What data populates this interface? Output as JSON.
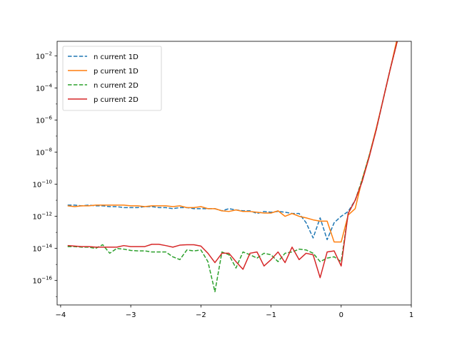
{
  "chart_data": {
    "type": "line",
    "y_scale": "log",
    "xlim": [
      -4.05,
      1.0
    ],
    "ylim": [
      3e-18,
      0.08
    ],
    "grid": false,
    "legend_position": "top-left",
    "x_ticks": [
      -4,
      -3,
      -2,
      -1,
      0,
      1
    ],
    "x_tick_labels": [
      "−4",
      "−3",
      "−2",
      "−1",
      "0",
      "1"
    ],
    "y_ticks": [
      1e-16,
      1e-14,
      1e-12,
      1e-10,
      1e-08,
      1e-06,
      0.0001,
      0.01
    ],
    "y_tick_labels": [
      {
        "base": "10",
        "exp": "−16"
      },
      {
        "base": "10",
        "exp": "−14"
      },
      {
        "base": "10",
        "exp": "−12"
      },
      {
        "base": "10",
        "exp": "−10"
      },
      {
        "base": "10",
        "exp": "−8"
      },
      {
        "base": "10",
        "exp": "−6"
      },
      {
        "base": "10",
        "exp": "−4"
      },
      {
        "base": "10",
        "exp": "−2"
      }
    ],
    "x": [
      -3.9,
      -3.8,
      -3.7,
      -3.6,
      -3.5,
      -3.4,
      -3.3,
      -3.2,
      -3.1,
      -3.0,
      -2.9,
      -2.8,
      -2.7,
      -2.6,
      -2.5,
      -2.4,
      -2.3,
      -2.2,
      -2.1,
      -2.0,
      -1.9,
      -1.8,
      -1.7,
      -1.6,
      -1.5,
      -1.4,
      -1.3,
      -1.2,
      -1.1,
      -1.0,
      -0.9,
      -0.8,
      -0.7,
      -0.6,
      -0.5,
      -0.4,
      -0.3,
      -0.2,
      -0.1,
      0.0,
      0.1,
      0.2,
      0.3,
      0.4,
      0.5,
      0.6,
      0.7,
      0.8
    ],
    "series": [
      {
        "name": "n current 1D",
        "color": "#1f77b4",
        "dash": "dashed",
        "values": [
          5e-12,
          5e-12,
          4.5e-12,
          5e-12,
          4.5e-12,
          4.5e-12,
          4e-12,
          4e-12,
          3.5e-12,
          3.5e-12,
          3.5e-12,
          4e-12,
          4e-12,
          3.5e-12,
          3.5e-12,
          3e-12,
          3.5e-12,
          3.5e-12,
          3e-12,
          3e-12,
          3e-12,
          3e-12,
          2.2e-12,
          3e-12,
          2.5e-12,
          2.2e-12,
          2.2e-12,
          1.5e-12,
          2e-12,
          1.8e-12,
          2e-12,
          1.8e-12,
          1.5e-12,
          1.5e-12,
          4e-13,
          4.5e-14,
          8e-13,
          3.5e-14,
          4e-13,
          1e-12,
          2e-12,
          1e-11,
          1.5e-10,
          6e-09,
          2.5e-07,
          2e-05,
          0.0015,
          0.1
        ]
      },
      {
        "name": "p current 1D",
        "color": "#ff7f0e",
        "dash": "solid",
        "values": [
          4.5e-12,
          4e-12,
          4.5e-12,
          4.5e-12,
          5e-12,
          5e-12,
          5e-12,
          5e-12,
          5e-12,
          4.5e-12,
          4.5e-12,
          4e-12,
          4.5e-12,
          4.5e-12,
          4.5e-12,
          4e-12,
          4.5e-12,
          3.5e-12,
          3.5e-12,
          4e-12,
          3e-12,
          3e-12,
          2.2e-12,
          2e-12,
          2.5e-12,
          2e-12,
          2e-12,
          1.8e-12,
          1.6e-12,
          1.6e-12,
          2.2e-12,
          1e-12,
          1.5e-12,
          1e-12,
          8e-13,
          6e-13,
          5e-13,
          5e-13,
          2.5e-14,
          2.5e-14,
          1.2e-12,
          3e-12,
          2e-10,
          6e-09,
          3e-07,
          2e-05,
          0.0015,
          0.13
        ]
      },
      {
        "name": "n current 2D",
        "color": "#2ca02c",
        "dash": "dashed",
        "values": [
          1.3e-14,
          1.3e-14,
          1.2e-14,
          1.2e-14,
          1e-14,
          1.7e-14,
          5e-15,
          1e-14,
          9e-15,
          7.5e-15,
          7e-15,
          7e-15,
          6e-15,
          6e-15,
          6e-15,
          3e-15,
          2e-15,
          8e-15,
          7e-15,
          8e-15,
          1.5e-15,
          2e-17,
          6e-15,
          4e-15,
          6e-16,
          6e-15,
          4e-15,
          2.5e-15,
          5e-15,
          4e-15,
          1.5e-15,
          5e-15,
          6e-15,
          9e-15,
          8e-15,
          5e-15,
          1.5e-15,
          2.5e-15,
          3e-15,
          1.5e-15,
          1.5e-12,
          1e-11,
          2e-10,
          6e-09,
          2.5e-07,
          2e-05,
          0.0015,
          0.08
        ]
      },
      {
        "name": "p current 2D",
        "color": "#d62728",
        "dash": "solid",
        "values": [
          1.5e-14,
          1.4e-14,
          1.3e-14,
          1.3e-14,
          1.2e-14,
          1.2e-14,
          1.2e-14,
          1.2e-14,
          1.5e-14,
          1.3e-14,
          1.3e-14,
          1.3e-14,
          1.8e-14,
          1.8e-14,
          1.5e-14,
          1.2e-14,
          1.6e-14,
          1.7e-14,
          1.7e-14,
          1.4e-14,
          5e-15,
          1.3e-15,
          5e-15,
          5e-15,
          1.5e-15,
          5e-16,
          5e-15,
          6e-15,
          8e-16,
          2e-15,
          6e-15,
          1.3e-15,
          1.2e-14,
          2e-15,
          5e-15,
          4e-15,
          1.5e-16,
          6e-15,
          7e-15,
          8e-16,
          1.5e-12,
          1e-11,
          1.5e-10,
          5e-09,
          2.5e-07,
          2e-05,
          0.0015,
          0.08
        ]
      }
    ]
  }
}
